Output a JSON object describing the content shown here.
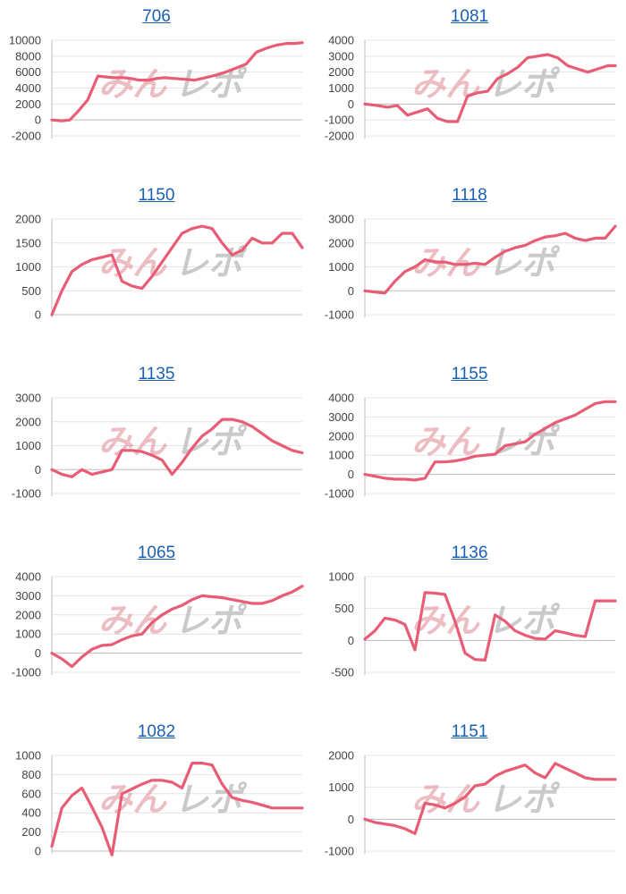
{
  "chart_data": [
    {
      "type": "line",
      "title": "706",
      "ylim": [
        -2000,
        10000
      ],
      "yticks": [
        -2000,
        0,
        2000,
        4000,
        6000,
        8000,
        10000
      ],
      "x": [
        0,
        4,
        7,
        10,
        14,
        18,
        21,
        24,
        28,
        31,
        34,
        38,
        41,
        44,
        48,
        52,
        56,
        60,
        64,
        68,
        72,
        76,
        80,
        84,
        88,
        92,
        95,
        98
      ],
      "values": [
        0,
        -100,
        0,
        1000,
        2500,
        5500,
        5400,
        5300,
        5300,
        5200,
        5000,
        5000,
        5200,
        5300,
        5200,
        5100,
        5000,
        5300,
        5600,
        6000,
        6500,
        7000,
        8500,
        9000,
        9400,
        9600,
        9600,
        9700
      ],
      "color": "#e85d75"
    },
    {
      "type": "line",
      "title": "1081",
      "ylim": [
        -2000,
        4000
      ],
      "yticks": [
        -2000,
        -1000,
        0,
        1000,
        2000,
        3000,
        4000
      ],
      "x": [
        0,
        5,
        9,
        13,
        17,
        21,
        25,
        29,
        33,
        37,
        41,
        45,
        49,
        53,
        57,
        61,
        65,
        69,
        73,
        77,
        81,
        85,
        89,
        93,
        97,
        100
      ],
      "values": [
        0,
        -100,
        -200,
        -100,
        -700,
        -500,
        -300,
        -900,
        -1100,
        -1100,
        500,
        700,
        800,
        1600,
        1900,
        2300,
        2900,
        3000,
        3100,
        2900,
        2400,
        2200,
        2000,
        2200,
        2400,
        2400
      ],
      "color": "#e85d75"
    },
    {
      "type": "line",
      "title": "1150",
      "ylim": [
        0,
        2000
      ],
      "yticks": [
        0,
        500,
        1000,
        1500,
        2000
      ],
      "x": [
        0,
        4,
        8,
        12,
        16,
        20,
        24,
        28,
        32,
        36,
        40,
        44,
        48,
        52,
        56,
        60,
        64,
        68,
        72,
        76,
        80,
        84,
        88,
        92,
        96,
        100
      ],
      "values": [
        0,
        500,
        900,
        1050,
        1150,
        1200,
        1250,
        700,
        600,
        550,
        800,
        1100,
        1400,
        1700,
        1800,
        1850,
        1800,
        1500,
        1250,
        1350,
        1600,
        1500,
        1500,
        1700,
        1700,
        1400
      ],
      "color": "#e85d75"
    },
    {
      "type": "line",
      "title": "1118",
      "ylim": [
        -1000,
        3000
      ],
      "yticks": [
        -1000,
        0,
        1000,
        2000,
        3000
      ],
      "x": [
        0,
        4,
        8,
        12,
        16,
        20,
        24,
        28,
        32,
        36,
        40,
        44,
        48,
        52,
        56,
        60,
        64,
        68,
        72,
        76,
        80,
        84,
        88,
        92,
        96,
        100
      ],
      "values": [
        0,
        -50,
        -100,
        400,
        800,
        1000,
        1300,
        1200,
        1200,
        1100,
        1100,
        1150,
        1100,
        1400,
        1650,
        1800,
        1900,
        2100,
        2250,
        2300,
        2400,
        2200,
        2100,
        2200,
        2200,
        2700
      ],
      "color": "#e85d75"
    },
    {
      "type": "line",
      "title": "1135",
      "ylim": [
        -1000,
        3000
      ],
      "yticks": [
        -1000,
        0,
        1000,
        2000,
        3000
      ],
      "x": [
        0,
        4,
        8,
        12,
        16,
        20,
        24,
        28,
        32,
        36,
        40,
        44,
        48,
        52,
        56,
        60,
        64,
        68,
        72,
        76,
        80,
        84,
        88,
        92,
        96,
        100
      ],
      "values": [
        0,
        -200,
        -300,
        0,
        -200,
        -100,
        0,
        800,
        800,
        750,
        600,
        400,
        -200,
        300,
        900,
        1400,
        1700,
        2100,
        2100,
        2000,
        1800,
        1500,
        1200,
        1000,
        800,
        700
      ],
      "color": "#e85d75"
    },
    {
      "type": "line",
      "title": "1155",
      "ylim": [
        -1000,
        4000
      ],
      "yticks": [
        -1000,
        0,
        1000,
        2000,
        3000,
        4000
      ],
      "x": [
        0,
        4,
        8,
        12,
        16,
        20,
        24,
        28,
        32,
        36,
        40,
        44,
        48,
        52,
        56,
        60,
        64,
        68,
        72,
        76,
        80,
        84,
        88,
        92,
        96,
        100
      ],
      "values": [
        0,
        -100,
        -200,
        -250,
        -250,
        -300,
        -200,
        650,
        650,
        700,
        800,
        950,
        1000,
        1050,
        1500,
        1600,
        1700,
        2100,
        2400,
        2700,
        2900,
        3100,
        3400,
        3700,
        3800,
        3800
      ],
      "color": "#e85d75"
    },
    {
      "type": "line",
      "title": "1065",
      "ylim": [
        -1000,
        4000
      ],
      "yticks": [
        -1000,
        0,
        1000,
        2000,
        3000,
        4000
      ],
      "x": [
        0,
        4,
        8,
        12,
        16,
        20,
        24,
        28,
        32,
        36,
        40,
        44,
        48,
        52,
        56,
        60,
        64,
        68,
        72,
        76,
        80,
        84,
        88,
        92,
        96,
        100
      ],
      "values": [
        0,
        -300,
        -700,
        -200,
        200,
        400,
        450,
        700,
        900,
        1000,
        1600,
        2000,
        2300,
        2500,
        2800,
        3000,
        2950,
        2900,
        2800,
        2700,
        2600,
        2600,
        2750,
        3000,
        3200,
        3500
      ],
      "color": "#e85d75"
    },
    {
      "type": "line",
      "title": "1136",
      "ylim": [
        -500,
        1000
      ],
      "yticks": [
        -500,
        0,
        500,
        1000
      ],
      "x": [
        0,
        4,
        8,
        12,
        16,
        20,
        24,
        28,
        32,
        36,
        40,
        44,
        48,
        52,
        56,
        60,
        64,
        68,
        72,
        76,
        80,
        84,
        88,
        92,
        96,
        100
      ],
      "values": [
        20,
        150,
        350,
        320,
        250,
        -150,
        750,
        740,
        720,
        300,
        -200,
        -300,
        -310,
        400,
        300,
        150,
        80,
        30,
        20,
        150,
        120,
        80,
        60,
        620,
        620,
        620
      ],
      "color": "#e85d75"
    },
    {
      "type": "line",
      "title": "1082",
      "ylim": [
        0,
        1000
      ],
      "yticks": [
        0,
        200,
        400,
        600,
        800,
        1000
      ],
      "x": [
        0,
        4,
        8,
        12,
        16,
        20,
        24,
        28,
        32,
        36,
        40,
        44,
        48,
        52,
        56,
        60,
        64,
        68,
        72,
        76,
        80,
        84,
        88,
        92,
        96,
        100
      ],
      "values": [
        50,
        450,
        580,
        660,
        460,
        250,
        -40,
        600,
        650,
        700,
        740,
        740,
        720,
        660,
        920,
        920,
        900,
        700,
        560,
        530,
        510,
        480,
        450,
        450,
        450,
        450
      ],
      "color": "#e85d75"
    },
    {
      "type": "line",
      "title": "1151",
      "ylim": [
        -1000,
        2000
      ],
      "yticks": [
        -1000,
        0,
        1000,
        2000
      ],
      "x": [
        0,
        4,
        8,
        12,
        16,
        20,
        24,
        28,
        32,
        36,
        40,
        44,
        48,
        52,
        56,
        60,
        64,
        68,
        72,
        76,
        80,
        84,
        88,
        92,
        96,
        100
      ],
      "values": [
        0,
        -100,
        -150,
        -200,
        -300,
        -450,
        500,
        450,
        350,
        500,
        700,
        1050,
        1100,
        1350,
        1500,
        1600,
        1700,
        1450,
        1300,
        1750,
        1600,
        1450,
        1300,
        1250,
        1250,
        1250
      ],
      "color": "#e85d75"
    }
  ],
  "watermark": {
    "part_a": "みん",
    "part_b": "レポ"
  }
}
